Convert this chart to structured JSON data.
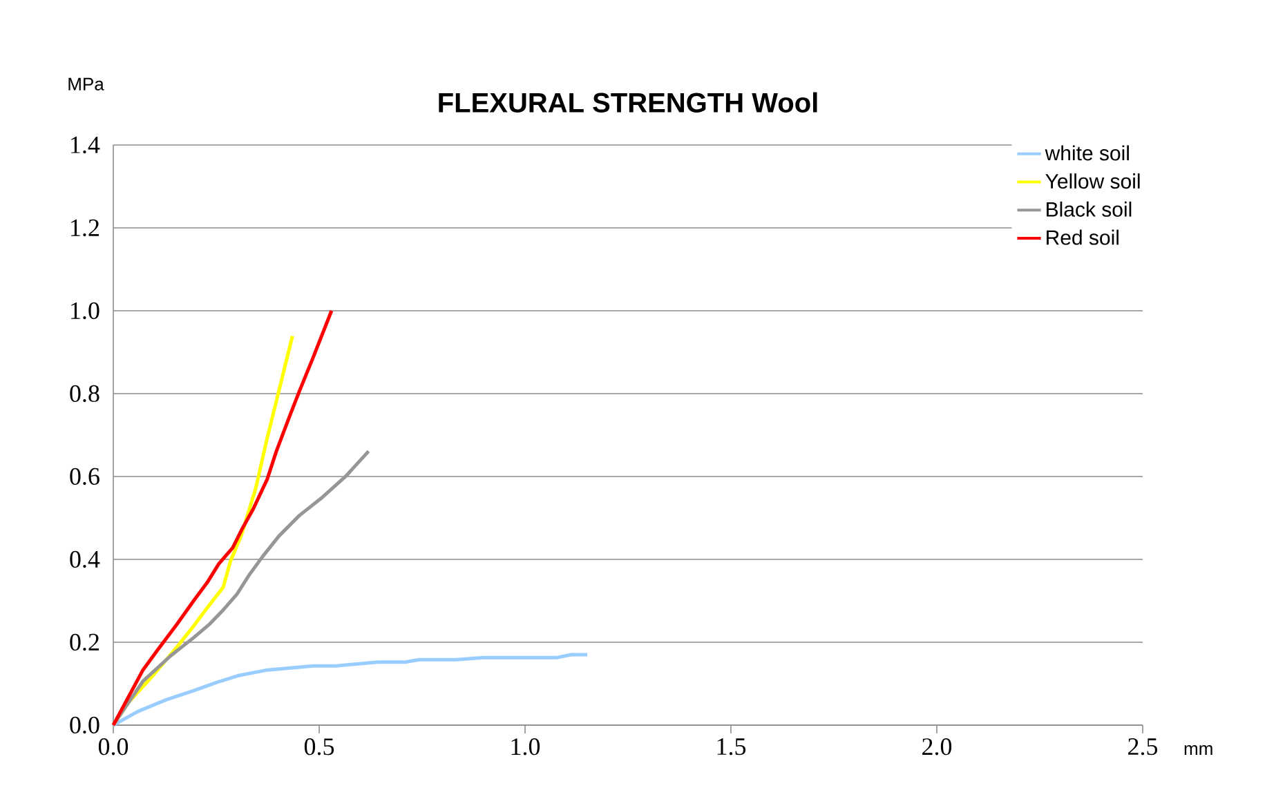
{
  "chart_data": {
    "type": "line",
    "title": "FLEXURAL STRENGTH Wool",
    "xlabel": "mm",
    "ylabel": "MPa",
    "xlim": [
      0,
      2.5
    ],
    "xticks": [
      {
        "value": 0,
        "label": "0.0"
      },
      0.5,
      {
        "value": 1,
        "label": "1.0"
      },
      1.5,
      {
        "value": 2,
        "label": "2.0"
      },
      2.5
    ],
    "ylim": [
      0,
      1.4
    ],
    "yticks": [
      {
        "value": 0,
        "label": "0.0"
      },
      0.2,
      0.4,
      0.6,
      0.8,
      {
        "value": 1,
        "label": "1.0"
      },
      1.2,
      1.4
    ],
    "grid": "y",
    "legend": "top right",
    "marker": "none",
    "line_style": "solid",
    "series": [
      {
        "name": "white soil",
        "color": "#99ccff",
        "x": [
          0,
          0.06,
          0.128,
          0.195,
          0.251,
          0.306,
          0.374,
          0.486,
          0.541,
          0.642,
          0.709,
          0.743,
          0.832,
          0.899,
          1.078,
          1.112,
          1.151
        ],
        "values": [
          0,
          0.033,
          0.061,
          0.083,
          0.103,
          0.12,
          0.133,
          0.143,
          0.143,
          0.152,
          0.152,
          0.158,
          0.158,
          0.163,
          0.163,
          0.17,
          0.17
        ]
      },
      {
        "name": "Yellow soil",
        "color": "#ffff00",
        "x": [
          0,
          0.038,
          0.094,
          0.15,
          0.195,
          0.228,
          0.267,
          0.284,
          0.312,
          0.346,
          0.374,
          0.402,
          0.435
        ],
        "values": [
          0,
          0.056,
          0.117,
          0.183,
          0.239,
          0.283,
          0.333,
          0.394,
          0.461,
          0.572,
          0.694,
          0.806,
          0.939
        ]
      },
      {
        "name": "Black soil",
        "color": "#969696",
        "x": [
          0,
          0.072,
          0.139,
          0.195,
          0.234,
          0.267,
          0.301,
          0.329,
          0.362,
          0.402,
          0.452,
          0.508,
          0.564,
          0.62
        ],
        "values": [
          0,
          0.106,
          0.167,
          0.211,
          0.244,
          0.278,
          0.317,
          0.361,
          0.406,
          0.456,
          0.506,
          0.55,
          0.6,
          0.661
        ]
      },
      {
        "name": "Red soil",
        "color": "#ff0000",
        "x": [
          0,
          0.072,
          0.105,
          0.155,
          0.195,
          0.228,
          0.256,
          0.29,
          0.312,
          0.34,
          0.374,
          0.396,
          0.43,
          0.452,
          0.486,
          0.53
        ],
        "values": [
          0,
          0.133,
          0.178,
          0.244,
          0.3,
          0.344,
          0.389,
          0.428,
          0.472,
          0.522,
          0.594,
          0.661,
          0.75,
          0.806,
          0.889,
          1.0
        ]
      }
    ]
  }
}
